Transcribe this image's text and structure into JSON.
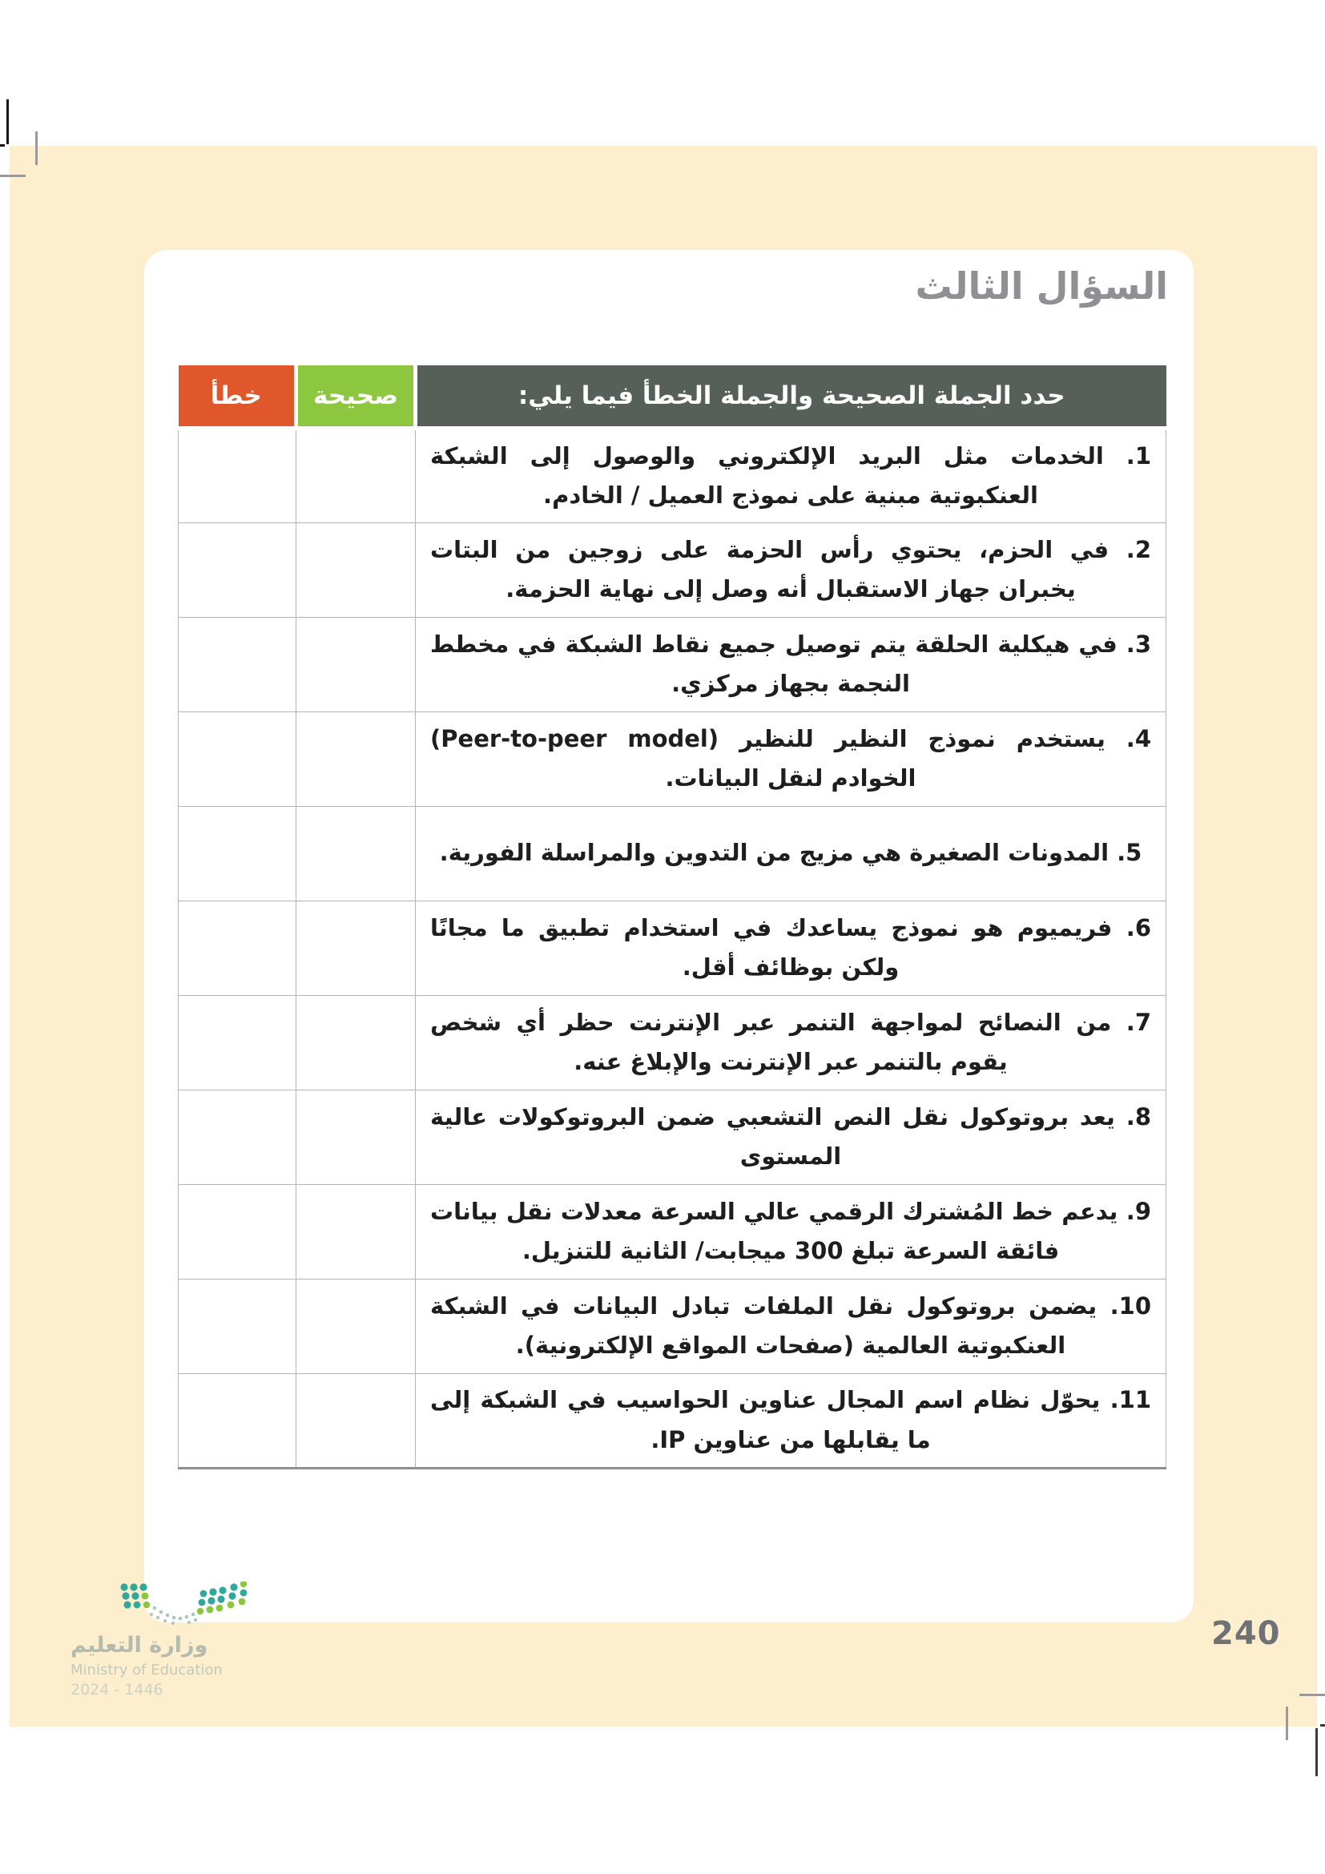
{
  "page": {
    "title": "السؤال الثالث",
    "page_number": "240"
  },
  "table": {
    "header": {
      "statement_label": "حدد الجملة الصحيحة والجملة الخطأ فيما يلي:",
      "correct_label": "صحيحة",
      "wrong_label": "خطأ"
    },
    "rows": [
      {
        "text": "1. الخدمات مثل البريد الإلكتروني والوصول إلى الشبكة العنكبوتية مبنية على نموذج العميل / الخادم."
      },
      {
        "text": "2. في الحزم، يحتوي رأس الحزمة على زوجين من البتات يخبران جهاز الاستقبال أنه وصل إلى نهاية الحزمة."
      },
      {
        "text": "3. في هيكلية الحلقة يتم توصيل جميع نقاط الشبكة في مخطط النجمة بجهاز مركزي."
      },
      {
        "text": "4. يستخدم نموذج النظير للنظير (Peer-to-peer model) الخوادم لنقل البيانات."
      },
      {
        "text": "5. المدونات الصغيرة هي مزيج من التدوين والمراسلة الفورية."
      },
      {
        "text": "6. فريميوم هو نموذج يساعدك في استخدام تطبيق ما مجانًا ولكن بوظائف أقل."
      },
      {
        "text": "7. من النصائح لمواجهة التنمر عبر الإنترنت حظر أي شخص يقوم بالتنمر عبر الإنترنت والإبلاغ عنه."
      },
      {
        "text": "8. يعد بروتوكول نقل النص التشعبي ضمن البروتوكولات عالية المستوى"
      },
      {
        "text": "9. يدعم خط المُشترك الرقمي عالي السرعة معدلات نقل بيانات فائقة السرعة تبلغ 300 ميجابت/ الثانية للتنزيل."
      },
      {
        "text": "10. يضمن بروتوكول نقل الملفات تبادل البيانات في الشبكة العنكبوتية العالمية (صفحات المواقع الإلكترونية)."
      },
      {
        "text": "11. يحوّل نظام اسم المجال عناوين الحواسيب في الشبكة إلى ما يقابلها من عناوين IP."
      }
    ]
  },
  "footer": {
    "ministry_ar": "وزارة التعليم",
    "ministry_en": "Ministry of Education",
    "edition": "2024 - 1446"
  },
  "colors": {
    "page_bg": "#fdeecd",
    "header_dark": "#565f58",
    "correct_green": "#8dc63f",
    "wrong_orange": "#e0572b",
    "title_gray": "#8e9094",
    "body_text": "#1e1e1e",
    "page_number_gray": "#6e7175",
    "logo_teal": "#30a89b",
    "logo_green": "#8cc63f"
  }
}
